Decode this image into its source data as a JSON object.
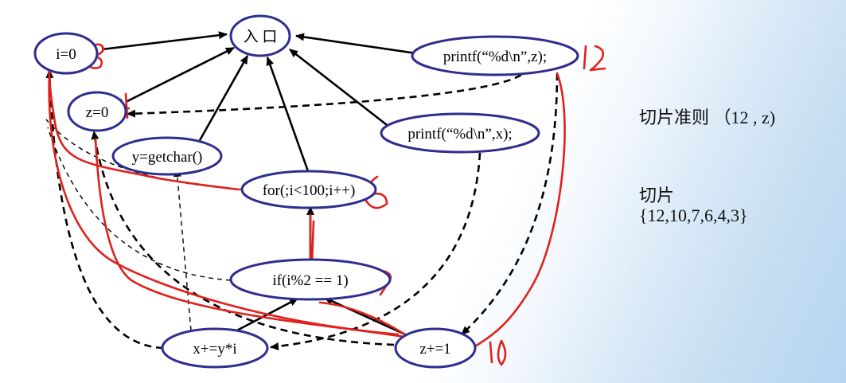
{
  "nodes": {
    "entry": "入 口",
    "i0": "i=0",
    "z0": "z=0",
    "getchar": "y=getchar()",
    "for": "for(;i<100;i++)",
    "printf_z": "printf(“%d\\n”,z);",
    "printf_x": "printf(“%d\\n”,x);",
    "if": "if(i%2 == 1)",
    "xpy": "x+=y*i",
    "zp1": "z+=1"
  },
  "annotations": {
    "i0": "3",
    "z0": "4",
    "for": "6",
    "printf_z": "12",
    "if": "7",
    "zp1": "10"
  },
  "criterion": {
    "label": "切片准则",
    "value": "（12 , z)"
  },
  "slice": {
    "label": "切片",
    "set": "{12,10,7,6,4,3}"
  },
  "colors": {
    "node_border": "#2e2e8f",
    "annotation": "#e0201c",
    "edge": "#000000"
  }
}
